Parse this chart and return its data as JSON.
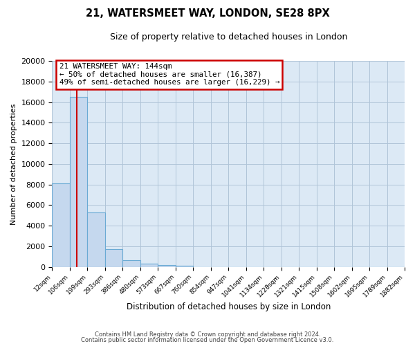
{
  "title": "21, WATERSMEET WAY, LONDON, SE28 8PX",
  "subtitle": "Size of property relative to detached houses in London",
  "xlabel": "Distribution of detached houses by size in London",
  "ylabel": "Number of detached properties",
  "bar_values": [
    8100,
    16500,
    5300,
    1750,
    650,
    300,
    200,
    100,
    0,
    0,
    0,
    0,
    0,
    0,
    0,
    0,
    0,
    0,
    0,
    0
  ],
  "bin_labels": [
    "12sqm",
    "106sqm",
    "199sqm",
    "293sqm",
    "386sqm",
    "480sqm",
    "573sqm",
    "667sqm",
    "760sqm",
    "854sqm",
    "947sqm",
    "1041sqm",
    "1134sqm",
    "1228sqm",
    "1321sqm",
    "1415sqm",
    "1508sqm",
    "1602sqm",
    "1695sqm",
    "1789sqm",
    "1882sqm"
  ],
  "bar_color": "#c5d8ee",
  "bar_edge_color": "#6aaad4",
  "vline_color": "#cc0000",
  "vline_x": 1.41,
  "annotation_title": "21 WATERSMEET WAY: 144sqm",
  "annotation_line1": "← 50% of detached houses are smaller (16,387)",
  "annotation_line2": "49% of semi-detached houses are larger (16,229) →",
  "annotation_box_facecolor": "#ffffff",
  "annotation_box_edgecolor": "#cc0000",
  "ylim": [
    0,
    20000
  ],
  "yticks": [
    0,
    2000,
    4000,
    6000,
    8000,
    10000,
    12000,
    14000,
    16000,
    18000,
    20000
  ],
  "footer1": "Contains HM Land Registry data © Crown copyright and database right 2024.",
  "footer2": "Contains public sector information licensed under the Open Government Licence v3.0.",
  "bg_color": "#ffffff",
  "axes_bg_color": "#dce9f5",
  "grid_color": "#b0c4d8"
}
